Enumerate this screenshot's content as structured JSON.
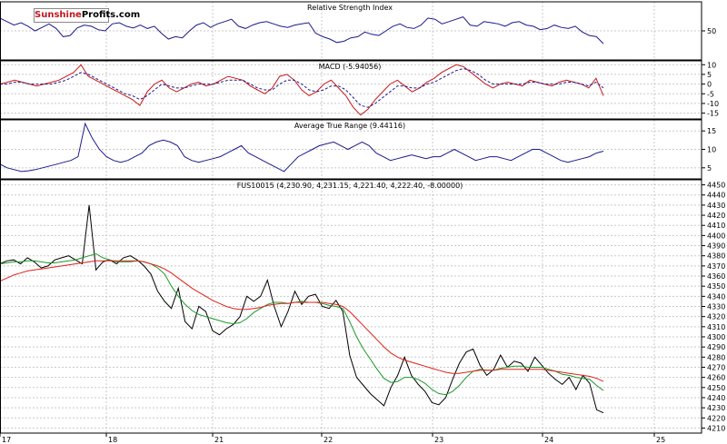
{
  "logo": {
    "part1": "Sunshine",
    "part2": "Profits",
    "part3": ".com"
  },
  "colors": {
    "price": "#000000",
    "ma_fast": "#1a9a2a",
    "ma_slow": "#e0201a",
    "indicator": "#1a1a8c",
    "signal": "#c8181a",
    "grid": "#c8c8c8",
    "frame": "#000000"
  },
  "x_ticks": [
    "17",
    "18",
    "21",
    "22",
    "23",
    "24",
    "25"
  ],
  "chart_data": [
    {
      "type": "line",
      "title": "Relative Strength Index",
      "yticks": [
        "50"
      ],
      "ylim": [
        0,
        100
      ],
      "series": [
        {
          "values": [
            72,
            66,
            60,
            64,
            58,
            50,
            56,
            62,
            54,
            40,
            42,
            55,
            60,
            58,
            52,
            50,
            62,
            64,
            58,
            55,
            60,
            54,
            58,
            46,
            36,
            40,
            38,
            50,
            60,
            64,
            56,
            62,
            66,
            70,
            58,
            54,
            60,
            64,
            66,
            62,
            58,
            56,
            60,
            62,
            64,
            46,
            40,
            36,
            30,
            32,
            38,
            40,
            48,
            44,
            42,
            50,
            58,
            62,
            56,
            54,
            60,
            72,
            70,
            62,
            66,
            70,
            74,
            60,
            58,
            66,
            64,
            62,
            58,
            64,
            66,
            60,
            58,
            52,
            54,
            60,
            56,
            54,
            58,
            48,
            42,
            40,
            28
          ]
        }
      ]
    },
    {
      "type": "line",
      "title": "MACD (-5.94056)",
      "yticks": [
        "10",
        "5",
        "0",
        "-5",
        "-10",
        "-15"
      ],
      "ylim": [
        -18,
        12
      ],
      "series": [
        {
          "values": [
            0,
            1,
            2,
            1,
            0,
            -1,
            0,
            1,
            2,
            4,
            6,
            10,
            4,
            2,
            0,
            -2,
            -4,
            -6,
            -8,
            -11,
            -4,
            0,
            2,
            -2,
            -4,
            -2,
            0,
            1,
            -1,
            0,
            2,
            4,
            3,
            2,
            -1,
            -3,
            -5,
            -2,
            4,
            5,
            2,
            -3,
            -6,
            -4,
            0,
            2,
            -2,
            -6,
            -12,
            -16,
            -13,
            -8,
            -4,
            0,
            2,
            -1,
            -4,
            -2,
            1,
            3,
            6,
            8,
            10,
            9,
            6,
            3,
            0,
            -2,
            0,
            1,
            0,
            -1,
            2,
            1,
            0,
            -1,
            1,
            2,
            1,
            0,
            -2,
            3,
            -6
          ]
        },
        {
          "values": [
            0,
            0,
            1,
            1,
            0,
            0,
            0,
            0,
            1,
            2,
            4,
            6,
            5,
            3,
            1,
            -1,
            -3,
            -5,
            -6,
            -8,
            -6,
            -3,
            0,
            -1,
            -2,
            -2,
            -1,
            0,
            0,
            0,
            1,
            2,
            2,
            2,
            0,
            -2,
            -3,
            -3,
            0,
            2,
            2,
            0,
            -3,
            -4,
            -3,
            -1,
            -1,
            -3,
            -7,
            -11,
            -12,
            -10,
            -7,
            -4,
            -1,
            -1,
            -2,
            -2,
            0,
            1,
            3,
            5,
            7,
            8,
            7,
            5,
            2,
            0,
            0,
            0,
            0,
            0,
            1,
            1,
            0,
            0,
            0,
            1,
            1,
            0,
            -1,
            1,
            -2
          ]
        }
      ]
    },
    {
      "type": "line",
      "title": "Average True Range (9.44116)",
      "yticks": [
        "15",
        "10",
        "5"
      ],
      "ylim": [
        2,
        18
      ],
      "series": [
        {
          "values": [
            6,
            5,
            4.5,
            4,
            4.2,
            4.5,
            5,
            5.5,
            6,
            6.5,
            7,
            8,
            17,
            13,
            10,
            8,
            7,
            6.5,
            7,
            8,
            9,
            11,
            12,
            12.5,
            12,
            11,
            8,
            7,
            6.5,
            7,
            7.5,
            8,
            9,
            10,
            11,
            9,
            8,
            7,
            6,
            5,
            4,
            6,
            8,
            9,
            10,
            11,
            11.5,
            12,
            11,
            10,
            11,
            12,
            11,
            9,
            8,
            7,
            7.5,
            8,
            8.5,
            8,
            7.5,
            8,
            8,
            9,
            10,
            9,
            8,
            7,
            7.5,
            8,
            8,
            7.5,
            7,
            8,
            9,
            10,
            10,
            9,
            8,
            7,
            6.5,
            7,
            7.5,
            8,
            9,
            9.5
          ]
        }
      ]
    },
    {
      "type": "line",
      "title": "FUS10015 (4,230.90, 4,231.15, 4,221.40, 4,222.40, -8.00000)",
      "yticks": [
        "4450",
        "4440",
        "4430",
        "4420",
        "4410",
        "4400",
        "4390",
        "4380",
        "4370",
        "4360",
        "4350",
        "4340",
        "4330",
        "4320",
        "4310",
        "4300",
        "4290",
        "4280",
        "4270",
        "4260",
        "4250",
        "4240",
        "4230",
        "4220",
        "4210"
      ],
      "ylim": [
        4205,
        4455
      ],
      "series": [
        {
          "name": "price",
          "values": [
            4372,
            4375,
            4376,
            4372,
            4378,
            4374,
            4368,
            4370,
            4376,
            4378,
            4380,
            4376,
            4372,
            4430,
            4366,
            4374,
            4376,
            4372,
            4378,
            4380,
            4376,
            4370,
            4362,
            4345,
            4335,
            4328,
            4348,
            4315,
            4308,
            4330,
            4325,
            4306,
            4302,
            4308,
            4312,
            4320,
            4340,
            4335,
            4340,
            4356,
            4330,
            4310,
            4325,
            4345,
            4332,
            4340,
            4342,
            4330,
            4328,
            4336,
            4325,
            4282,
            4260,
            4252,
            4244,
            4238,
            4232,
            4250,
            4262,
            4280,
            4262,
            4253,
            4246,
            4235,
            4233,
            4240,
            4258,
            4274,
            4285,
            4288,
            4272,
            4262,
            4268,
            4282,
            4270,
            4276,
            4274,
            4266,
            4280,
            4272,
            4264,
            4258,
            4253,
            4260,
            4248,
            4262,
            4254,
            4228,
            4225
          ]
        },
        {
          "name": "ma_fast",
          "values": [
            4372,
            4373,
            4374,
            4374,
            4375,
            4375,
            4374,
            4373,
            4373,
            4374,
            4375,
            4376,
            4378,
            4380,
            4382,
            4378,
            4376,
            4374,
            4374,
            4374,
            4375,
            4374,
            4372,
            4368,
            4362,
            4350,
            4340,
            4332,
            4326,
            4322,
            4320,
            4318,
            4316,
            4314,
            4313,
            4314,
            4318,
            4324,
            4328,
            4332,
            4334,
            4334,
            4333,
            4334,
            4335,
            4334,
            4334,
            4333,
            4331,
            4330,
            4328,
            4315,
            4300,
            4288,
            4278,
            4268,
            4259,
            4255,
            4256,
            4260,
            4260,
            4258,
            4254,
            4248,
            4244,
            4243,
            4246,
            4252,
            4260,
            4266,
            4268,
            4267,
            4267,
            4269,
            4270,
            4271,
            4271,
            4270,
            4270,
            4270,
            4268,
            4266,
            4263,
            4262,
            4260,
            4259,
            4258,
            4252,
            4247
          ]
        },
        {
          "name": "ma_slow",
          "values": [
            4355,
            4358,
            4361,
            4363,
            4365,
            4366,
            4367,
            4368,
            4369,
            4370,
            4371,
            4372,
            4373,
            4374,
            4375,
            4375,
            4375,
            4375,
            4375,
            4375,
            4375,
            4374,
            4372,
            4370,
            4367,
            4363,
            4358,
            4353,
            4348,
            4344,
            4340,
            4336,
            4333,
            4330,
            4328,
            4327,
            4327,
            4328,
            4329,
            4331,
            4332,
            4333,
            4333,
            4334,
            4334,
            4334,
            4334,
            4334,
            4333,
            4332,
            4330,
            4325,
            4318,
            4311,
            4304,
            4297,
            4290,
            4284,
            4280,
            4277,
            4275,
            4273,
            4271,
            4269,
            4267,
            4265,
            4264,
            4264,
            4265,
            4266,
            4267,
            4267,
            4267,
            4268,
            4268,
            4268,
            4268,
            4268,
            4268,
            4268,
            4267,
            4266,
            4265,
            4264,
            4263,
            4262,
            4261,
            4259,
            4256
          ]
        }
      ]
    }
  ]
}
